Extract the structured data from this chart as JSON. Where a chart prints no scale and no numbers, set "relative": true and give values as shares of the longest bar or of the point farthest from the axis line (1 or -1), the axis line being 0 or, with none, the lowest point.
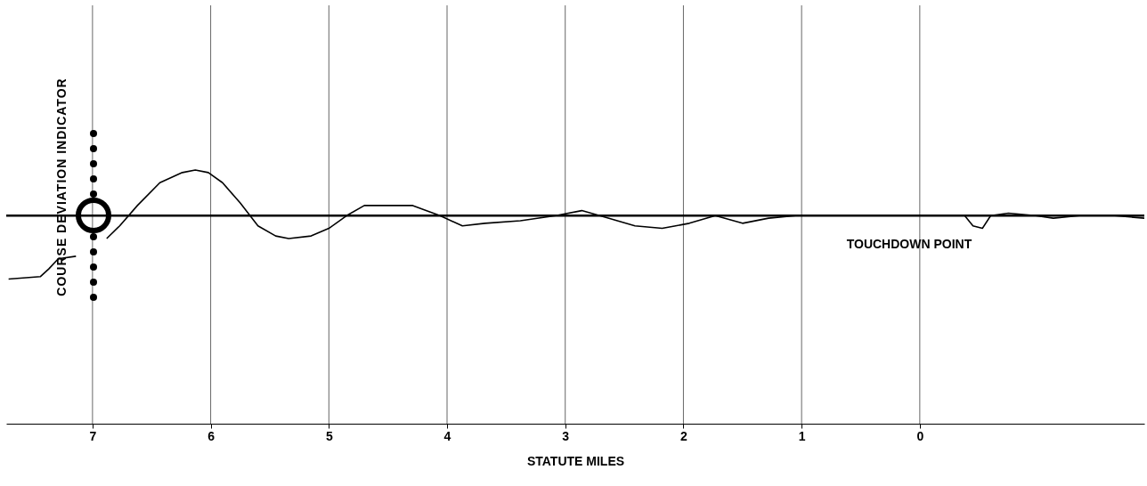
{
  "chart_data": {
    "type": "line",
    "relative": true,
    "xlabel": "STATUTE MILES",
    "xlim": [
      7.73,
      -1.9
    ],
    "xticks": [
      7,
      6,
      5,
      4,
      3,
      2,
      1,
      0
    ],
    "grid": "x",
    "x": [
      7.71,
      7.44,
      7.37,
      7.29,
      7.14,
      6.99,
      6.88,
      6.77,
      6.62,
      6.43,
      6.24,
      6.13,
      6.02,
      5.9,
      5.75,
      5.6,
      5.45,
      5.34,
      5.15,
      5.0,
      4.85,
      4.7,
      4.51,
      4.29,
      4.06,
      3.87,
      3.68,
      3.38,
      3.08,
      2.86,
      2.63,
      2.41,
      2.18,
      1.95,
      1.73,
      1.5,
      1.28,
      1.05,
      0.68,
      0.23,
      -0.38,
      -0.45,
      -0.53,
      -0.6,
      -0.75,
      -0.98,
      -1.13,
      -1.35,
      -1.65,
      -1.9
    ],
    "series": [
      {
        "color": "#000000",
        "values": [
          0.57,
          0.58,
          0.61,
          0.65,
          0.66,
          null,
          0.73,
          0.78,
          0.86,
          0.95,
          0.99,
          1,
          0.99,
          0.95,
          0.87,
          0.78,
          0.74,
          0.73,
          0.74,
          0.77,
          0.82,
          0.86,
          0.86,
          0.86,
          0.82,
          0.78,
          0.79,
          0.8,
          0.82,
          0.84,
          0.81,
          0.78,
          0.77,
          0.79,
          0.82,
          0.79,
          0.81,
          0.82,
          0.82,
          0.82,
          0.82,
          0.78,
          0.77,
          0.82,
          0.83,
          0.82,
          0.81,
          0.82,
          0.82,
          0.81
        ]
      }
    ],
    "ref_lines": [
      {
        "axis": "y",
        "value": 0.82,
        "color": "#000000"
      }
    ],
    "annotations": [
      {
        "text": "TOUCHDOWN POINT",
        "x": -0.5,
        "y": 0.77
      },
      "COURSE DEVIATION INDICATOR"
    ]
  }
}
